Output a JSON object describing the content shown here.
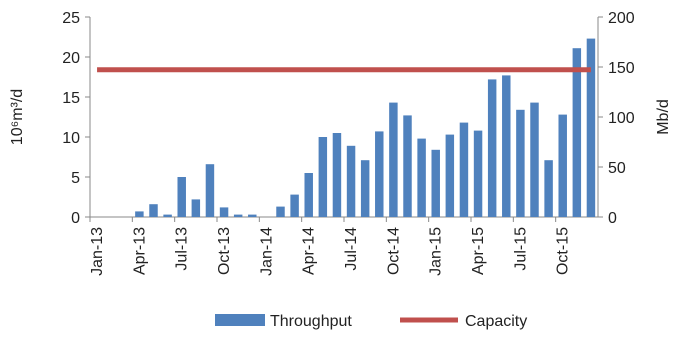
{
  "chart_data": {
    "type": "bar",
    "y_label": "10⁶m³/d",
    "y2_label": "Mb/d",
    "categories": [
      "Jan-13",
      null,
      null,
      "Apr-13",
      null,
      null,
      "Jul-13",
      null,
      null,
      "Oct-13",
      null,
      null,
      "Jan-14",
      null,
      null,
      "Apr-14",
      null,
      null,
      "Jul-14",
      null,
      null,
      "Oct-14",
      null,
      null,
      "Jan-15",
      null,
      null,
      "Apr-15",
      null,
      null,
      "Jul-15",
      null,
      null,
      "Oct-15",
      null,
      null
    ],
    "series": [
      {
        "name": "Throughput",
        "type": "bar",
        "color": "#4f81bd",
        "values": [
          0,
          0,
          0,
          0.7,
          1.6,
          0.3,
          5.0,
          2.2,
          6.6,
          1.2,
          0.3,
          0.3,
          0,
          1.3,
          2.8,
          5.5,
          10.0,
          10.5,
          8.9,
          7.1,
          10.7,
          14.3,
          12.7,
          9.8,
          8.4,
          10.3,
          11.8,
          10.8,
          17.2,
          17.7,
          13.4,
          14.3,
          7.1,
          12.8,
          21.1,
          22.3
        ]
      },
      {
        "name": "Capacity",
        "type": "line",
        "color": "#c0504d",
        "values": [
          18.4,
          18.4,
          18.4,
          18.4,
          18.4,
          18.4,
          18.4,
          18.4,
          18.4,
          18.4,
          18.4,
          18.4,
          18.4,
          18.4,
          18.4,
          18.4,
          18.4,
          18.4,
          18.4,
          18.4,
          18.4,
          18.4,
          18.4,
          18.4,
          18.4,
          18.4,
          18.4,
          18.4,
          18.4,
          18.4,
          18.4,
          18.4,
          18.4,
          18.4,
          18.4,
          18.4
        ]
      }
    ],
    "ylim": [
      0,
      25
    ],
    "yticks": [
      0,
      5,
      10,
      15,
      20,
      25
    ],
    "y2lim": [
      0,
      200
    ],
    "y2ticks": [
      0,
      50,
      100,
      150,
      200
    ],
    "legend": "bottom"
  }
}
